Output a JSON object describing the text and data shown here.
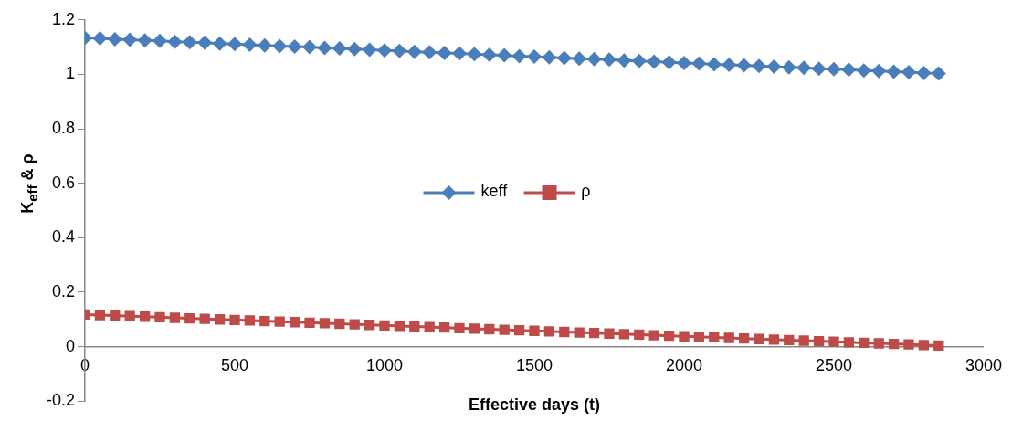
{
  "chart_data": {
    "type": "line",
    "xlabel": "Effective days (t)",
    "ylabel": "K$_{eff}$ & ρ",
    "x": [
      0,
      50,
      100,
      150,
      200,
      250,
      300,
      350,
      400,
      450,
      500,
      550,
      600,
      650,
      700,
      750,
      800,
      850,
      900,
      950,
      1000,
      1050,
      1100,
      1150,
      1200,
      1250,
      1300,
      1350,
      1400,
      1450,
      1500,
      1550,
      1600,
      1650,
      1700,
      1750,
      1800,
      1850,
      1900,
      1950,
      2000,
      2050,
      2100,
      2150,
      2200,
      2250,
      2300,
      2350,
      2400,
      2450,
      2500,
      2550,
      2600,
      2650,
      2700,
      2750,
      2800,
      2850
    ],
    "series": [
      {
        "name": "keff",
        "color": "#4a7ebb",
        "marker": "diamond",
        "values": [
          1.134,
          1.132,
          1.129,
          1.127,
          1.125,
          1.123,
          1.12,
          1.118,
          1.116,
          1.113,
          1.111,
          1.109,
          1.106,
          1.104,
          1.102,
          1.1,
          1.097,
          1.095,
          1.093,
          1.09,
          1.088,
          1.086,
          1.083,
          1.081,
          1.079,
          1.077,
          1.074,
          1.072,
          1.07,
          1.067,
          1.065,
          1.063,
          1.06,
          1.058,
          1.056,
          1.054,
          1.051,
          1.049,
          1.047,
          1.044,
          1.042,
          1.04,
          1.037,
          1.035,
          1.033,
          1.031,
          1.028,
          1.026,
          1.024,
          1.021,
          1.019,
          1.017,
          1.014,
          1.012,
          1.01,
          1.008,
          1.005,
          1.003
        ]
      },
      {
        "name": "ρ",
        "color": "#be4b48",
        "marker": "square",
        "values": [
          0.118,
          0.116,
          0.114,
          0.112,
          0.11,
          0.108,
          0.106,
          0.104,
          0.102,
          0.1,
          0.098,
          0.096,
          0.094,
          0.092,
          0.09,
          0.088,
          0.086,
          0.084,
          0.082,
          0.08,
          0.078,
          0.076,
          0.074,
          0.072,
          0.07,
          0.068,
          0.066,
          0.064,
          0.062,
          0.06,
          0.058,
          0.056,
          0.054,
          0.052,
          0.05,
          0.048,
          0.046,
          0.044,
          0.042,
          0.04,
          0.038,
          0.036,
          0.034,
          0.032,
          0.03,
          0.028,
          0.026,
          0.024,
          0.022,
          0.02,
          0.018,
          0.016,
          0.014,
          0.012,
          0.01,
          0.008,
          0.006,
          0.004
        ]
      }
    ],
    "xlim": [
      0,
      3000
    ],
    "xticks": [
      0,
      500,
      1000,
      1500,
      2000,
      2500,
      3000
    ],
    "ylim": [
      -0.2,
      1.2
    ],
    "yticks": [
      -0.2,
      0,
      0.2,
      0.4,
      0.6,
      0.8,
      1,
      1.2
    ],
    "grid": false,
    "legend": "center"
  }
}
